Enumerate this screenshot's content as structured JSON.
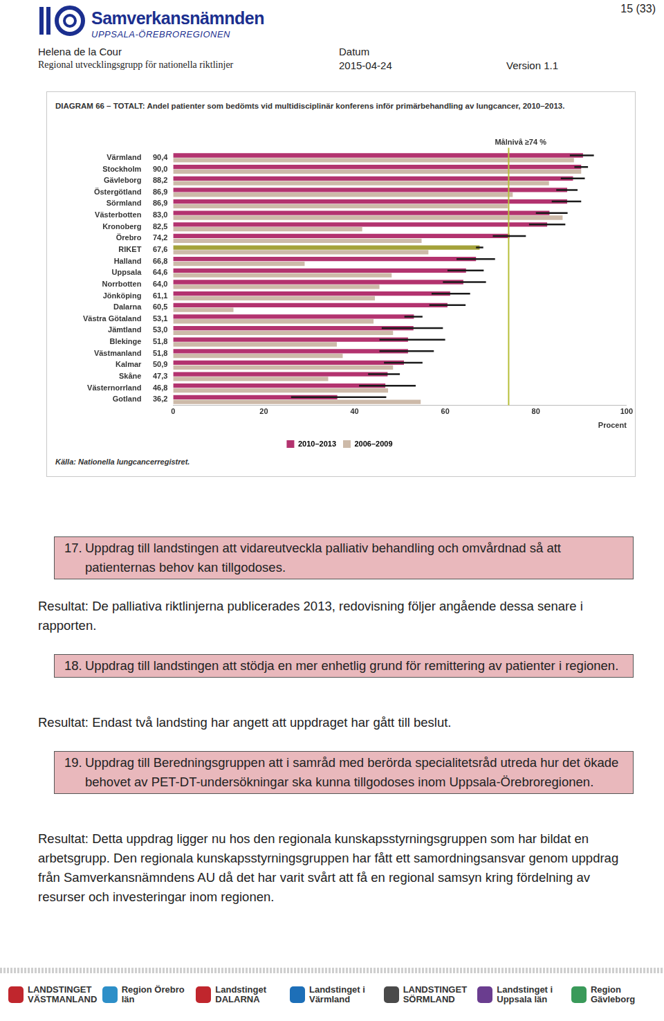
{
  "header": {
    "page": "15 (33)",
    "logo_title": "Samverkansnämnden",
    "logo_subtitle": "UPPSALA-ÖREBROREGIONEN",
    "author": "Helena de la Cour",
    "group": "Regional utvecklingsgrupp för nationella riktlinjer",
    "date_label": "Datum",
    "date": "2015-04-24",
    "version": "Version 1.1"
  },
  "chart_data": {
    "type": "bar",
    "orientation": "horizontal",
    "title": "DIAGRAM 66 – TOTALT: Andel patienter som bedömts vid multidisciplinär konferens inför primärbehandling av lungcancer, 2010–2013.",
    "source": "Källa: Nationella lungcancerregistret.",
    "xlabel": "Procent",
    "annotations": [
      {
        "text": "Målnivå ≥74 %",
        "x": 74
      }
    ],
    "categories": [
      "Värmland",
      "Stockholm",
      "Gävleborg",
      "Östergötland",
      "Sörmland",
      "Västerbotten",
      "Kronoberg",
      "Örebro",
      "RIKET",
      "Halland",
      "Uppsala",
      "Norrbotten",
      "Jönköping",
      "Dalarna",
      "Västra Götaland",
      "Jämtland",
      "Blekinge",
      "Västmanland",
      "Kalmar",
      "Skåne",
      "Västernorrland",
      "Gotland"
    ],
    "series": [
      {
        "name": "2010–2013",
        "color": "#b3336f",
        "colors": [
          "#b3336f",
          "#b3336f",
          "#b3336f",
          "#b3336f",
          "#b3336f",
          "#b3336f",
          "#b3336f",
          "#b3336f",
          "#a4a23a",
          "#b3336f",
          "#b3336f",
          "#b3336f",
          "#b3336f",
          "#b3336f",
          "#b3336f",
          "#b3336f",
          "#b3336f",
          "#b3336f",
          "#b3336f",
          "#b3336f",
          "#b3336f",
          "#b3336f"
        ],
        "values": [
          90.4,
          90.0,
          88.2,
          86.9,
          86.9,
          83.0,
          82.5,
          74.2,
          67.6,
          66.8,
          64.6,
          64.0,
          61.1,
          60.5,
          53.1,
          53.0,
          51.8,
          51.8,
          50.9,
          47.3,
          46.8,
          36.2
        ],
        "value_labels": [
          "90,4",
          "90,0",
          "88,2",
          "86,9",
          "86,9",
          "83,0",
          "82,5",
          "74,2",
          "67,6",
          "66,8",
          "64,6",
          "64,0",
          "61,1",
          "60,5",
          "53,1",
          "53,0",
          "51,8",
          "51,8",
          "50,9",
          "47,3",
          "46,8",
          "36,2"
        ],
        "error_low": [
          87.5,
          88.5,
          85.5,
          84.5,
          83.5,
          80.0,
          78.5,
          70.5,
          66.8,
          62.5,
          60.5,
          59.5,
          57.0,
          56.5,
          51.0,
          46.0,
          45.5,
          45.5,
          46.5,
          43.0,
          41.0,
          26.0
        ],
        "error_high": [
          92.8,
          91.5,
          90.8,
          89.2,
          90.0,
          87.0,
          86.5,
          77.8,
          68.4,
          71.0,
          68.5,
          69.0,
          65.5,
          64.5,
          55.0,
          59.5,
          60.0,
          57.5,
          55.0,
          50.0,
          53.5,
          47.0
        ]
      },
      {
        "name": "2006–2009",
        "color": "#cdbaa9",
        "values": [
          88.4,
          90.0,
          82.9,
          74.9,
          73.8,
          85.9,
          41.7,
          54.8,
          56.3,
          29.0,
          48.2,
          45.5,
          44.5,
          13.3,
          44.2,
          48.5,
          36.1,
          37.4,
          48.5,
          34.2,
          47.4,
          54.6
        ]
      }
    ],
    "xlim": [
      0,
      100
    ],
    "xticks": [
      0,
      20,
      40,
      60,
      80,
      100
    ],
    "grid": false,
    "legend": "bottom",
    "data_labels": true
  },
  "items": [
    {
      "number": "17.",
      "task": "Uppdrag till landstingen att vidareutveckla palliativ behandling och omvårdnad så att patienternas behov kan tillgodoses.",
      "result": "Resultat: De palliativa riktlinjerna publicerades 2013, redovisning följer angående dessa senare i rapporten."
    },
    {
      "number": "18.",
      "task": "Uppdrag till landstingen att stödja en mer enhetlig grund för remittering av patienter i regionen.",
      "result": "Resultat: Endast två landsting har angett att uppdraget har gått till beslut."
    },
    {
      "number": "19.",
      "task": "Uppdrag till Beredningsgruppen att i samråd med berörda specialitetsråd utreda hur det ökade behovet av PET-DT-undersökningar ska kunna tillgodoses inom Uppsala-Örebroregionen.",
      "result": "Resultat: Detta uppdrag ligger nu hos den regionala kunskapsstyrningsgruppen som har bildat en arbetsgrupp. Den regionala kunskapsstyrningsgruppen har fått ett samordningsansvar genom uppdrag från Samverkansnämndens AU då det har varit svårt att få en regional samsyn kring fördelning av resurser och investeringar inom regionen."
    }
  ],
  "footer": [
    "LANDSTINGET VÄSTMANLAND",
    "Region Örebro län",
    "Landstinget DALARNA",
    "Landstinget i Värmland",
    "LANDSTINGET SÖRMLAND",
    "Landstinget i Uppsala län",
    "Region Gävleborg"
  ]
}
